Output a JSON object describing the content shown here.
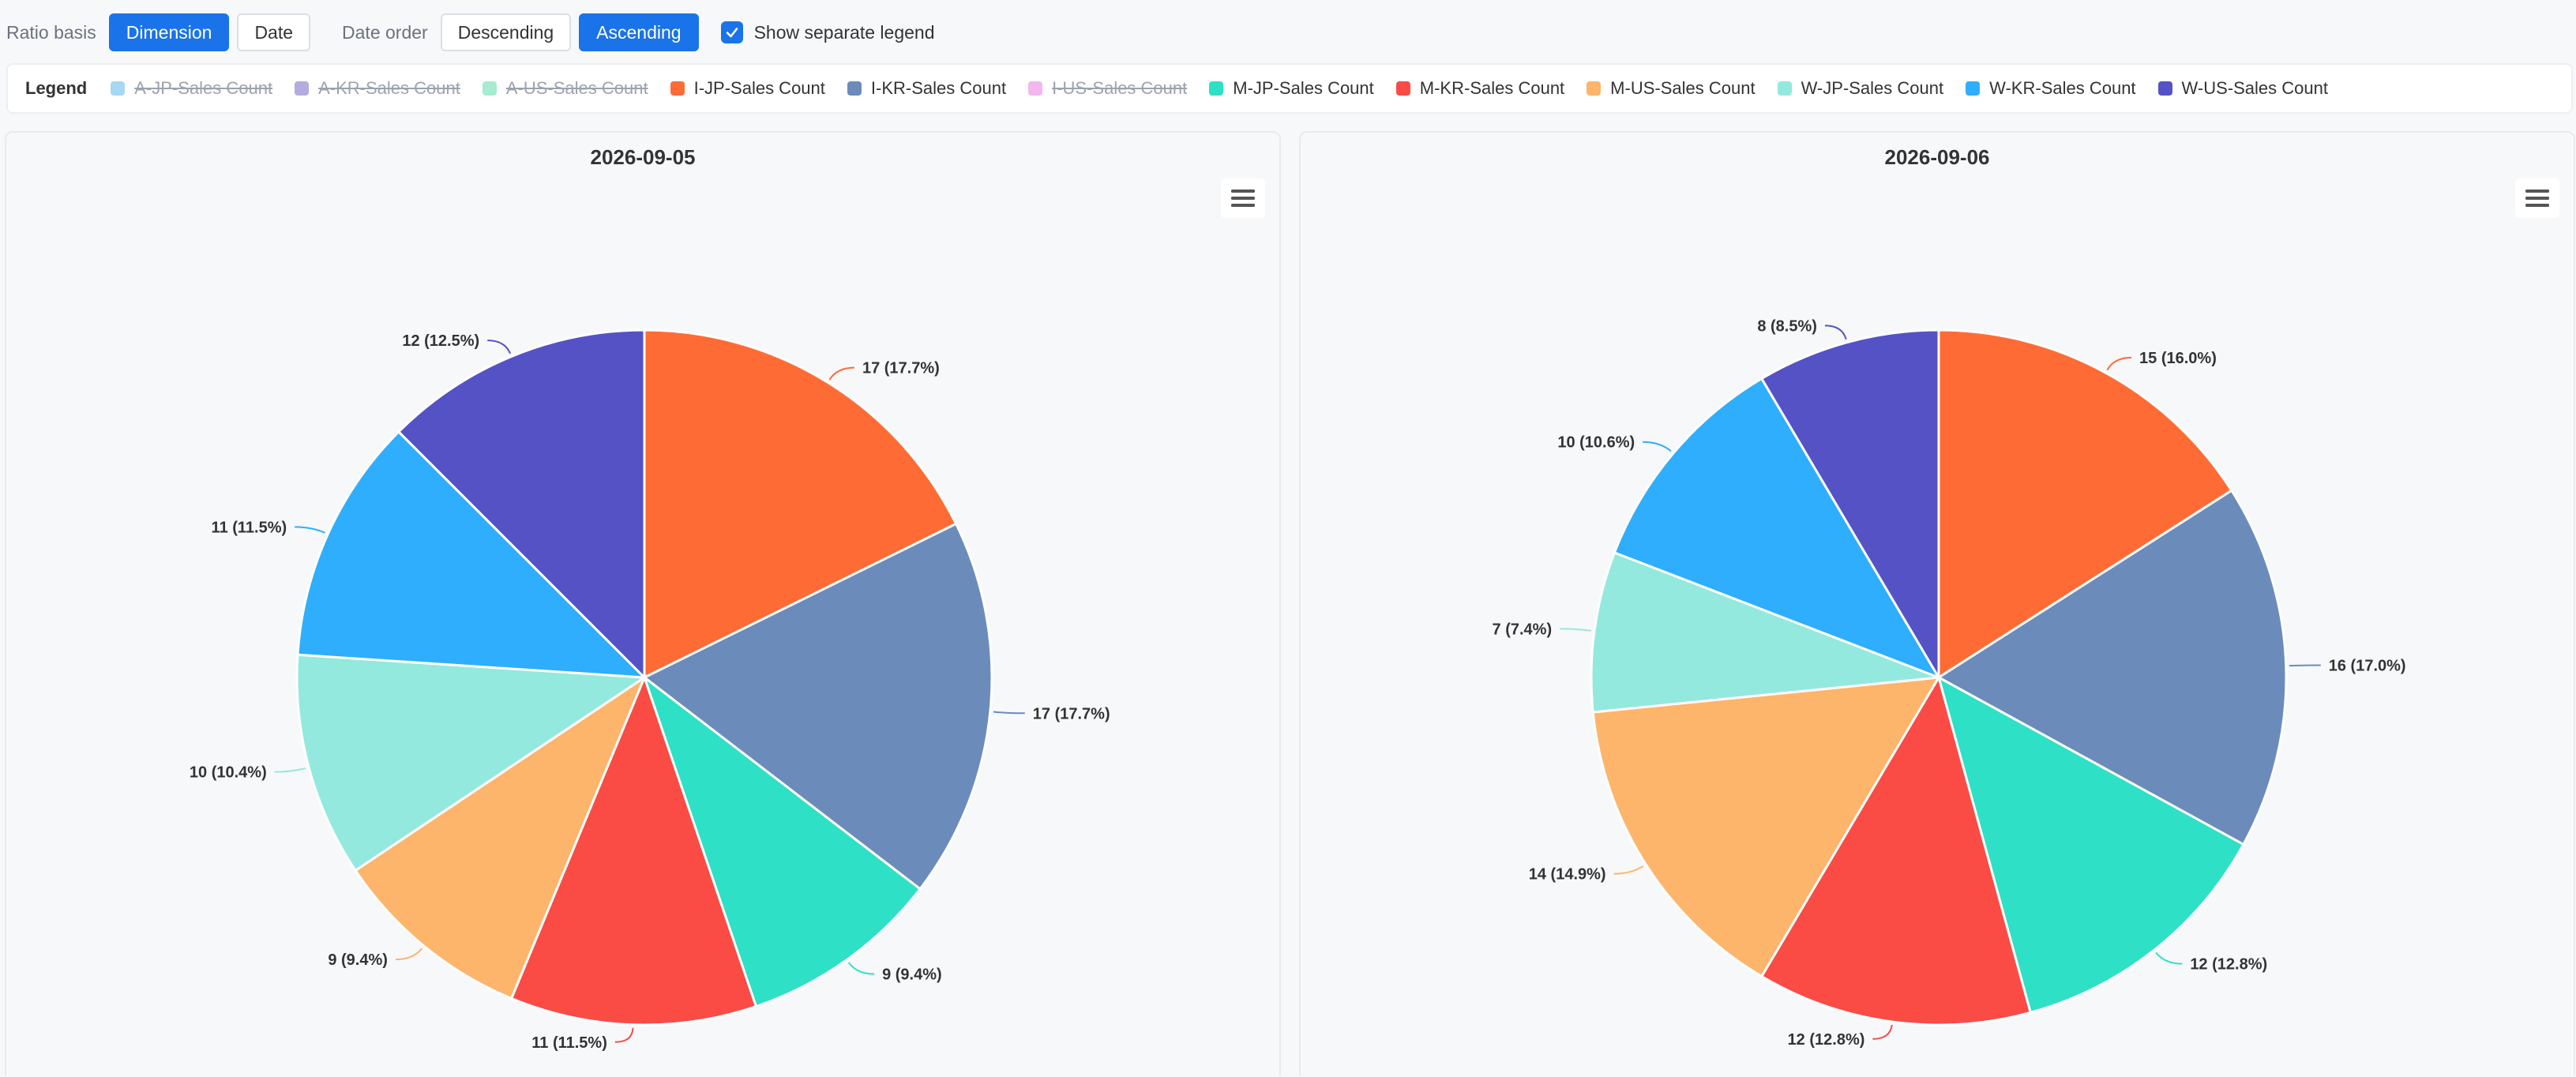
{
  "toolbar": {
    "ratio_label": "Ratio basis",
    "ratio_options": [
      "Dimension",
      "Date"
    ],
    "ratio_selected": "Dimension",
    "order_label": "Date order",
    "order_options": [
      "Descending",
      "Ascending"
    ],
    "order_selected": "Ascending",
    "legend_toggle_label": "Show separate legend",
    "legend_toggle_checked": true
  },
  "legend": {
    "title": "Legend",
    "items": [
      {
        "label": "A-JP-Sales Count",
        "color": "#a5d8f3",
        "active": false
      },
      {
        "label": "A-KR-Sales Count",
        "color": "#b3acdf",
        "active": false
      },
      {
        "label": "A-US-Sales Count",
        "color": "#a6ecd0",
        "active": false
      },
      {
        "label": "I-JP-Sales Count",
        "color": "#ff6b35",
        "active": true
      },
      {
        "label": "I-KR-Sales Count",
        "color": "#6b8cbb",
        "active": true
      },
      {
        "label": "I-US-Sales Count",
        "color": "#f3b6ef",
        "active": false
      },
      {
        "label": "M-JP-Sales Count",
        "color": "#2ee0c6",
        "active": true
      },
      {
        "label": "M-KR-Sales Count",
        "color": "#fa4b45",
        "active": true
      },
      {
        "label": "M-US-Sales Count",
        "color": "#fdb46b",
        "active": true
      },
      {
        "label": "W-JP-Sales Count",
        "color": "#93e9de",
        "active": true
      },
      {
        "label": "W-KR-Sales Count",
        "color": "#2eaefd",
        "active": true
      },
      {
        "label": "W-US-Sales Count",
        "color": "#5552c6",
        "active": true
      }
    ]
  },
  "chart_data": [
    {
      "type": "pie",
      "title": "2026-09-05",
      "slices": [
        {
          "name": "I-JP-Sales Count",
          "value": 17,
          "label": "17 (17.7%)",
          "color": "#ff6b35"
        },
        {
          "name": "I-KR-Sales Count",
          "value": 17,
          "label": "17 (17.7%)",
          "color": "#6b8cbb"
        },
        {
          "name": "M-JP-Sales Count",
          "value": 9,
          "label": "9 (9.4%)",
          "color": "#2ee0c6"
        },
        {
          "name": "M-KR-Sales Count",
          "value": 11,
          "label": "11 (11.5%)",
          "color": "#fa4b45"
        },
        {
          "name": "M-US-Sales Count",
          "value": 9,
          "label": "9 (9.4%)",
          "color": "#fdb46b"
        },
        {
          "name": "W-JP-Sales Count",
          "value": 10,
          "label": "10 (10.4%)",
          "color": "#93e9de"
        },
        {
          "name": "W-KR-Sales Count",
          "value": 11,
          "label": "11 (11.5%)",
          "color": "#2eaefd"
        },
        {
          "name": "W-US-Sales Count",
          "value": 12,
          "label": "12 (12.5%)",
          "color": "#5552c6"
        }
      ]
    },
    {
      "type": "pie",
      "title": "2026-09-06",
      "slices": [
        {
          "name": "I-JP-Sales Count",
          "value": 15,
          "label": "15 (16.0%)",
          "color": "#ff6b35"
        },
        {
          "name": "I-KR-Sales Count",
          "value": 16,
          "label": "16 (17.0%)",
          "color": "#6b8cbb"
        },
        {
          "name": "M-JP-Sales Count",
          "value": 12,
          "label": "12 (12.8%)",
          "color": "#2ee0c6"
        },
        {
          "name": "M-KR-Sales Count",
          "value": 12,
          "label": "12 (12.8%)",
          "color": "#fa4b45"
        },
        {
          "name": "M-US-Sales Count",
          "value": 14,
          "label": "14 (14.9%)",
          "color": "#fdb46b"
        },
        {
          "name": "W-JP-Sales Count",
          "value": 7,
          "label": "7 (7.4%)",
          "color": "#93e9de"
        },
        {
          "name": "W-KR-Sales Count",
          "value": 10,
          "label": "10 (10.6%)",
          "color": "#2eaefd"
        },
        {
          "name": "W-US-Sales Count",
          "value": 8,
          "label": "8 (8.5%)",
          "color": "#5552c6"
        }
      ]
    }
  ]
}
